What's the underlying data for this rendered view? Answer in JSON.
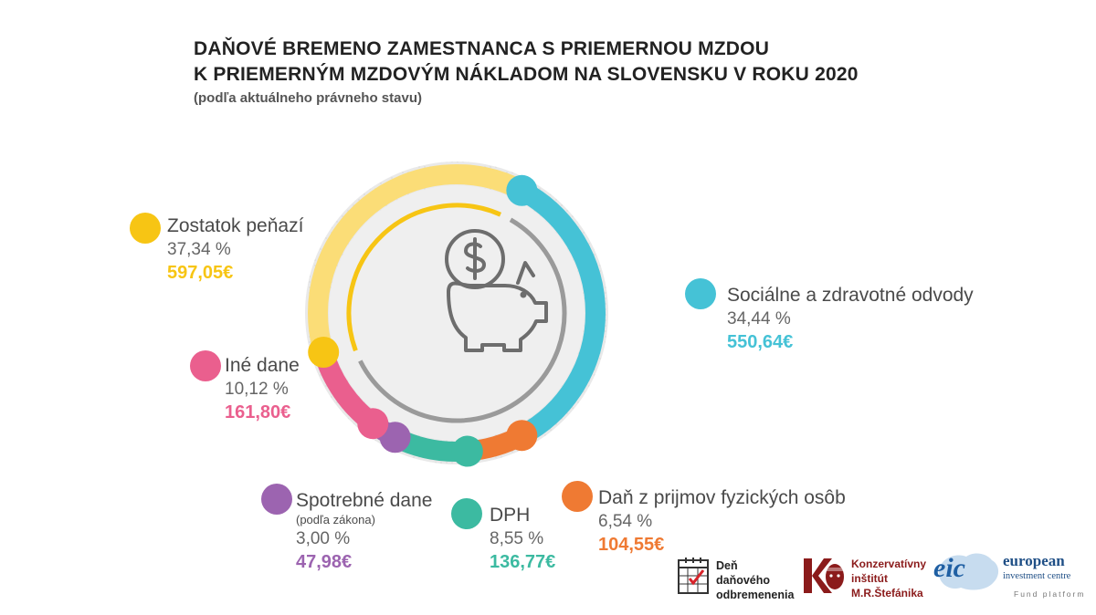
{
  "title": {
    "line1": "DAŇOVÉ BREMENO ZAMESTNANCA S PRIEMERNOU MZDOU",
    "line2": "K PRIEMERNÝM MZDOVÝM NÁKLADOM NA SLOVENSKU V ROKU 2020",
    "subtitle": "(podľa aktuálneho právneho stavu)"
  },
  "chart_data": {
    "type": "pie",
    "title": "DAŇOVÉ BREMENO ZAMESTNANCA S PRIEMERNOU MZDOU K PRIEMERNÝM MZDOVÝM NÁKLADOM NA SLOVENSKU V ROKU 2020",
    "subtitle": "(podľa aktuálneho právneho stavu)",
    "center_icon": "piggy-bank-dollar-icon",
    "categories": [
      "Sociálne a zdravotné odvody",
      "Daň z prijmov fyzických osôb",
      "DPH",
      "Spotrebné dane",
      "Iné dane",
      "Zostatok peňazí"
    ],
    "values": [
      34.44,
      6.54,
      8.55,
      3.0,
      10.12,
      37.34
    ],
    "series": [
      {
        "name": "Sociálne a zdravotné odvody",
        "note": "",
        "percent": 34.44,
        "percent_label": "34,44 %",
        "amount_label": "550,64€",
        "color": "#45c2d6"
      },
      {
        "name": "Daň z prijmov fyzických osôb",
        "note": "",
        "percent": 6.54,
        "percent_label": "6,54 %",
        "amount_label": "104,55€",
        "color": "#ef7a33"
      },
      {
        "name": "DPH",
        "note": "",
        "percent": 8.55,
        "percent_label": "8,55 %",
        "amount_label": "136,77€",
        "color": "#3cbaa1"
      },
      {
        "name": "Spotrebné dane",
        "note": "(podľa zákona)",
        "percent": 3.0,
        "percent_label": "3,00 %",
        "amount_label": "47,98€",
        "color": "#9c64b0"
      },
      {
        "name": "Iné dane",
        "note": "",
        "percent": 10.12,
        "percent_label": "10,12 %",
        "amount_label": "161,80€",
        "color": "#ea5f8e"
      },
      {
        "name": "Zostatok peňazí",
        "note": "",
        "percent": 37.34,
        "percent_label": "37,34 %",
        "amount_label": "597,05€",
        "color": "#f7c514"
      }
    ],
    "inner_ring": {
      "remaining_percent": 37.34,
      "remaining_color": "#f7c514",
      "rest_color": "#9a9a9a"
    },
    "colors": {
      "outer_ring_bg": "#e7e7e7",
      "center_disc": "#efefef",
      "icon": "#6d6d6d",
      "remaining_arc_light": "#fbdd77"
    }
  },
  "logos": {
    "ddo": {
      "line1": "Deň",
      "line2": "daňového",
      "line3": "odbremenenia",
      "icon": "calendar-check-icon"
    },
    "kimrs": {
      "line1": "Konzervatívny",
      "line2": "inštitút",
      "line3": "M.R.Štefánika",
      "icon": "kimrs-portrait-logo"
    },
    "eic": {
      "mark": "eic",
      "name": "european",
      "name2": "investment centre",
      "tagline": "Fund platform"
    }
  }
}
